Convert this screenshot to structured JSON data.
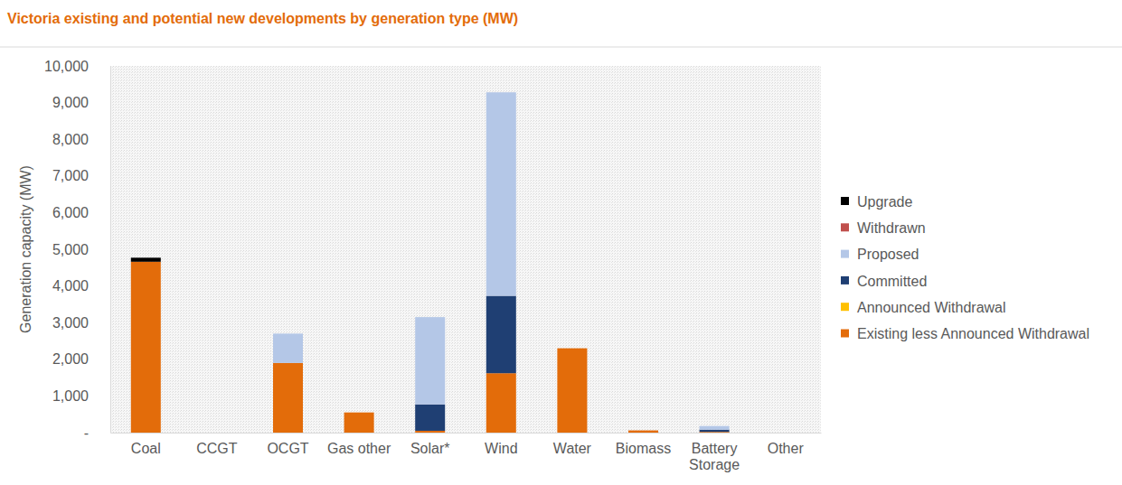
{
  "chart_data": {
    "type": "bar",
    "title": "Victoria existing and potential new developments by generation type (MW)",
    "y_label": "Generation capacity (MW)",
    "categories": [
      "Coal",
      "CCGT",
      "OCGT",
      "Gas other",
      "Solar*",
      "Wind",
      "Water",
      "Biomass",
      "Battery Storage",
      "Other"
    ],
    "series": [
      {
        "name": "Existing less Announced Withdrawal",
        "color": "#e36c0a",
        "values": [
          4660,
          0,
          1900,
          550,
          50,
          1620,
          2300,
          60,
          20,
          0
        ]
      },
      {
        "name": "Announced Withdrawal",
        "color": "#ffc000",
        "values": [
          0,
          0,
          0,
          0,
          0,
          0,
          0,
          0,
          0,
          0
        ]
      },
      {
        "name": "Committed",
        "color": "#1f3f73",
        "values": [
          0,
          0,
          0,
          0,
          720,
          2110,
          0,
          0,
          60,
          0
        ]
      },
      {
        "name": "Proposed",
        "color": "#b4c7e7",
        "values": [
          0,
          0,
          800,
          0,
          2380,
          5550,
          0,
          0,
          100,
          0
        ]
      },
      {
        "name": "Withdrawn",
        "color": "#c0504d",
        "values": [
          0,
          0,
          0,
          0,
          0,
          0,
          0,
          0,
          0,
          0
        ]
      },
      {
        "name": "Upgrade",
        "color": "#000000",
        "values": [
          110,
          0,
          0,
          0,
          0,
          0,
          0,
          0,
          0,
          0
        ]
      }
    ],
    "stacked": true,
    "legend": "right",
    "grid": false,
    "ylim": [
      0,
      10000
    ],
    "yticks": [
      {
        "value": 0,
        "label": "-"
      },
      {
        "value": 1000,
        "label": "1,000"
      },
      {
        "value": 2000,
        "label": "2,000"
      },
      {
        "value": 3000,
        "label": "3,000"
      },
      {
        "value": 4000,
        "label": "4,000"
      },
      {
        "value": 5000,
        "label": "5,000"
      },
      {
        "value": 6000,
        "label": "6,000"
      },
      {
        "value": 7000,
        "label": "7,000"
      },
      {
        "value": 8000,
        "label": "8,000"
      },
      {
        "value": 9000,
        "label": "9,000"
      },
      {
        "value": 10000,
        "label": "10,000"
      }
    ]
  }
}
